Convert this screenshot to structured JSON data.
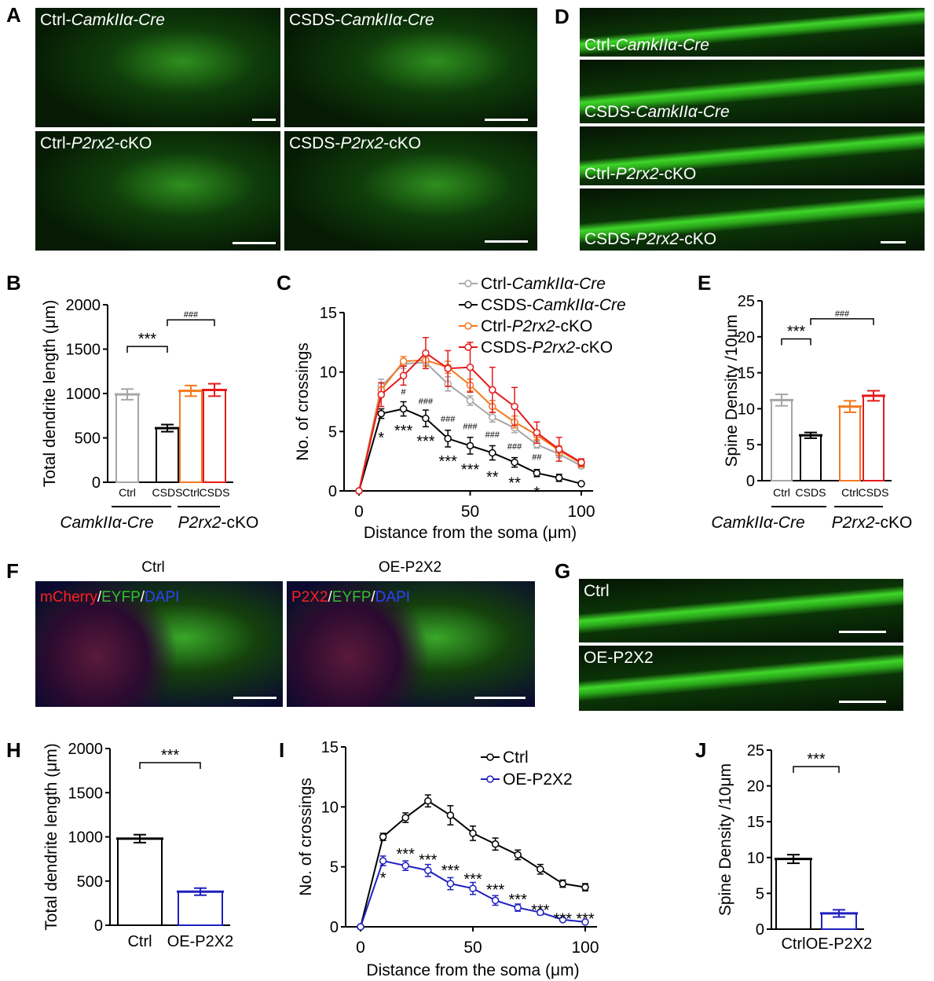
{
  "panel_letters": [
    "A",
    "B",
    "C",
    "D",
    "E",
    "F",
    "G",
    "H",
    "I",
    "J"
  ],
  "panel_A": {
    "images": [
      {
        "prefix": "Ctrl-",
        "italic": "CamkIIα-Cre",
        "suffix": ""
      },
      {
        "prefix": "CSDS-",
        "italic": "CamkIIα-Cre",
        "suffix": ""
      },
      {
        "prefix": "Ctrl-",
        "italic": "P2rx2",
        "suffix": "-cKO"
      },
      {
        "prefix": "CSDS-",
        "italic": "P2rx2",
        "suffix": "-cKO"
      }
    ]
  },
  "panel_D": {
    "images": [
      {
        "prefix": "Ctrl-",
        "italic": "CamkIIα-Cre",
        "suffix": ""
      },
      {
        "prefix": "CSDS-",
        "italic": "CamkIIα-Cre",
        "suffix": ""
      },
      {
        "prefix": "Ctrl-",
        "italic": "P2rx2",
        "suffix": "-cKO"
      },
      {
        "prefix": "CSDS-",
        "italic": "P2rx2",
        "suffix": "-cKO"
      }
    ]
  },
  "panel_F": {
    "titles": [
      "Ctrl",
      "OE-P2X2"
    ],
    "stains": [
      [
        "mCherry",
        "/",
        "EYFP",
        "/",
        "DAPI"
      ],
      [
        "P2X2",
        "/",
        "EYFP",
        "/",
        "DAPI"
      ]
    ]
  },
  "panel_G": {
    "labels": [
      "Ctrl",
      "OE-P2X2"
    ]
  },
  "colors": {
    "ctrl_camk": "#a6a6a6",
    "csds_camk": "#000000",
    "ctrl_cko": "#f47920",
    "csds_cko": "#e41a1c",
    "ctrl": "#000000",
    "oe": "#1f1fbf"
  },
  "chart_data": [
    {
      "id": "B",
      "type": "bar",
      "ylabel": "Total dendrite length (μm)",
      "ylim": [
        0,
        2000
      ],
      "yticks": [
        "0",
        "500",
        "1000",
        "1500",
        "2000"
      ],
      "ytick_values": [
        0,
        500,
        1000,
        1500,
        2000
      ],
      "categories": [
        "Ctrl",
        "CSDS",
        "Ctrl",
        "CSDS"
      ],
      "values": [
        990,
        610,
        1030,
        1040
      ],
      "errors": [
        60,
        40,
        60,
        70
      ],
      "colors": [
        "#a6a6a6",
        "#000000",
        "#f47920",
        "#e41a1c"
      ],
      "groups": [
        {
          "prefix": "",
          "italic": "CamkIIα-Cre",
          "suffix": ""
        },
        {
          "prefix": "",
          "italic": "P2rx2",
          "suffix": "-cKO"
        }
      ],
      "brackets": [
        {
          "from": 0,
          "to": 1,
          "text": "***",
          "y": 1530
        },
        {
          "from": 1,
          "to": 3,
          "text": "###",
          "y": 1830
        }
      ]
    },
    {
      "id": "C",
      "type": "line",
      "xlabel": "Distance from the soma (μm)",
      "ylabel": "No. of crossings",
      "xlim": [
        0,
        100
      ],
      "ylim": [
        0,
        15
      ],
      "xticks": [
        "0",
        "50",
        "100"
      ],
      "xtick_values": [
        0,
        50,
        100
      ],
      "yticks": [
        "0",
        "5",
        "10",
        "15"
      ],
      "ytick_values": [
        0,
        5,
        10,
        15
      ],
      "x": [
        0,
        10,
        20,
        30,
        40,
        50,
        60,
        70,
        80,
        90,
        100
      ],
      "series": [
        {
          "name": {
            "prefix": "Ctrl-",
            "italic": "CamkIIα-Cre",
            "suffix": ""
          },
          "color": "#a6a6a6",
          "values": [
            0,
            8.8,
            10.7,
            10.8,
            9.0,
            7.6,
            6.2,
            5.3,
            3.9,
            3.1,
            2.1
          ],
          "errors": [
            0,
            0.6,
            0.4,
            0.5,
            0.6,
            0.4,
            0.4,
            0.4,
            0.3,
            0.3,
            0.2
          ]
        },
        {
          "name": {
            "prefix": "CSDS-",
            "italic": "CamkIIα-Cre",
            "suffix": ""
          },
          "color": "#000000",
          "values": [
            0,
            6.5,
            6.9,
            6.1,
            4.4,
            3.8,
            3.2,
            2.4,
            1.5,
            1.1,
            0.6
          ],
          "errors": [
            0,
            0.4,
            0.6,
            0.7,
            0.7,
            0.7,
            0.6,
            0.4,
            0.3,
            0.3,
            0.1
          ]
        },
        {
          "name": {
            "prefix": "Ctrl-",
            "italic": "P2rx2",
            "suffix": "-cKO"
          },
          "color": "#f47920",
          "values": [
            0,
            8.5,
            10.9,
            11.0,
            10.4,
            8.9,
            7.1,
            5.8,
            4.7,
            3.4,
            2.3
          ],
          "errors": [
            0,
            0.6,
            0.4,
            0.5,
            0.5,
            0.5,
            0.5,
            0.5,
            0.4,
            0.4,
            0.3
          ]
        },
        {
          "name": {
            "prefix": "CSDS-",
            "italic": "P2rx2",
            "suffix": "-cKO"
          },
          "color": "#e41a1c",
          "values": [
            0,
            8.1,
            9.7,
            11.6,
            10.3,
            10.4,
            8.5,
            7.1,
            4.9,
            3.5,
            2.4
          ],
          "errors": [
            0,
            1.0,
            0.8,
            1.3,
            1.5,
            2.1,
            1.9,
            1.6,
            0.9,
            1.0,
            0.3
          ]
        }
      ],
      "legend_position": "top-right",
      "annotations": [
        {
          "x": 10,
          "y": 4.7,
          "text": "*"
        },
        {
          "x": 20,
          "y": 5.3,
          "text": "***"
        },
        {
          "x": 30,
          "y": 4.4,
          "text": "***"
        },
        {
          "x": 40,
          "y": 2.7,
          "text": "***"
        },
        {
          "x": 50,
          "y": 2.0,
          "text": "***"
        },
        {
          "x": 60,
          "y": 1.4,
          "text": "**"
        },
        {
          "x": 70,
          "y": 0.9,
          "text": "**"
        },
        {
          "x": 80,
          "y": 0.1,
          "text": "*"
        },
        {
          "x": 20,
          "y": 8.1,
          "text": "#"
        },
        {
          "x": 30,
          "y": 7.3,
          "text": "###"
        },
        {
          "x": 40,
          "y": 5.8,
          "text": "###"
        },
        {
          "x": 50,
          "y": 5.2,
          "text": "###"
        },
        {
          "x": 60,
          "y": 4.5,
          "text": "###"
        },
        {
          "x": 70,
          "y": 3.5,
          "text": "###"
        },
        {
          "x": 80,
          "y": 2.6,
          "text": "##"
        }
      ]
    },
    {
      "id": "E",
      "type": "bar",
      "ylabel": "Spine Density /10μm",
      "ylim": [
        0,
        25
      ],
      "yticks": [
        "0",
        "5",
        "10",
        "15",
        "20",
        "25"
      ],
      "ytick_values": [
        0,
        5,
        10,
        15,
        20,
        25
      ],
      "categories": [
        "Ctrl",
        "CSDS",
        "Ctrl",
        "CSDS"
      ],
      "values": [
        11.2,
        6.3,
        10.3,
        11.8
      ],
      "errors": [
        0.8,
        0.4,
        0.8,
        0.7
      ],
      "colors": [
        "#a6a6a6",
        "#000000",
        "#f47920",
        "#e41a1c"
      ],
      "groups": [
        {
          "prefix": "",
          "italic": "CamkIIα-Cre",
          "suffix": ""
        },
        {
          "prefix": "",
          "italic": "P2rx2",
          "suffix": "-cKO"
        }
      ],
      "brackets": [
        {
          "from": 0,
          "to": 1,
          "text": "***",
          "y": 19.7
        },
        {
          "from": 1,
          "to": 3,
          "text": "###",
          "y": 22.5
        }
      ]
    },
    {
      "id": "H",
      "type": "bar",
      "ylabel": "Total dendrite length (μm)",
      "ylim": [
        0,
        2000
      ],
      "yticks": [
        "0",
        "500",
        "1000",
        "1500",
        "2000"
      ],
      "ytick_values": [
        0,
        500,
        1000,
        1500,
        2000
      ],
      "categories": [
        "Ctrl",
        "OE-P2X2"
      ],
      "values": [
        980,
        380
      ],
      "errors": [
        45,
        40
      ],
      "colors": [
        "#000000",
        "#1f1fbf"
      ],
      "brackets": [
        {
          "from": 0,
          "to": 1,
          "text": "***",
          "y": 1840
        }
      ]
    },
    {
      "id": "I",
      "type": "line",
      "xlabel": "Distance from the soma (μm)",
      "ylabel": "No. of crossings",
      "xlim": [
        0,
        100
      ],
      "ylim": [
        0,
        15
      ],
      "xticks": [
        "0",
        "50",
        "100"
      ],
      "xtick_values": [
        0,
        50,
        100
      ],
      "yticks": [
        "0",
        "5",
        "10",
        "15"
      ],
      "ytick_values": [
        0,
        5,
        10,
        15
      ],
      "x": [
        0,
        10,
        20,
        30,
        40,
        50,
        60,
        70,
        80,
        90,
        100
      ],
      "series": [
        {
          "name": {
            "prefix": "Ctrl",
            "italic": "",
            "suffix": ""
          },
          "color": "#000000",
          "values": [
            0,
            7.5,
            9.1,
            10.5,
            9.3,
            7.8,
            6.9,
            6.0,
            4.8,
            3.6,
            3.3
          ],
          "errors": [
            0,
            0.3,
            0.4,
            0.5,
            0.8,
            0.6,
            0.5,
            0.4,
            0.4,
            0.3,
            0.3
          ]
        },
        {
          "name": {
            "prefix": "OE-P2X2",
            "italic": "",
            "suffix": ""
          },
          "color": "#1f1fbf",
          "values": [
            0,
            5.5,
            5.1,
            4.7,
            3.6,
            3.2,
            2.2,
            1.6,
            1.2,
            0.6,
            0.4
          ],
          "errors": [
            0,
            0.4,
            0.4,
            0.5,
            0.5,
            0.5,
            0.4,
            0.3,
            0.2,
            0.1,
            0.1
          ]
        }
      ],
      "legend_position": "top-right",
      "annotations": [
        {
          "x": 10,
          "y": 4.3,
          "text": "*"
        },
        {
          "x": 20,
          "y": 6.3,
          "text": "***"
        },
        {
          "x": 30,
          "y": 5.8,
          "text": "***"
        },
        {
          "x": 40,
          "y": 4.9,
          "text": "***"
        },
        {
          "x": 50,
          "y": 4.2,
          "text": "***"
        },
        {
          "x": 60,
          "y": 3.3,
          "text": "***"
        },
        {
          "x": 70,
          "y": 2.5,
          "text": "***"
        },
        {
          "x": 80,
          "y": 1.6,
          "text": "***"
        },
        {
          "x": 90,
          "y": 0.9,
          "text": "***"
        },
        {
          "x": 100,
          "y": 0.9,
          "text": "***"
        }
      ]
    },
    {
      "id": "J",
      "type": "bar",
      "ylabel": "Spine Density /10μm",
      "ylim": [
        0,
        25
      ],
      "yticks": [
        "0",
        "5",
        "10",
        "15",
        "20",
        "25"
      ],
      "ytick_values": [
        0,
        5,
        10,
        15,
        20,
        25
      ],
      "categories": [
        "Ctrl",
        "OE-P2X2"
      ],
      "values": [
        9.8,
        2.2
      ],
      "errors": [
        0.6,
        0.5
      ],
      "colors": [
        "#000000",
        "#1f1fbf"
      ],
      "brackets": [
        {
          "from": 0,
          "to": 1,
          "text": "***",
          "y": 22.7
        }
      ]
    }
  ]
}
